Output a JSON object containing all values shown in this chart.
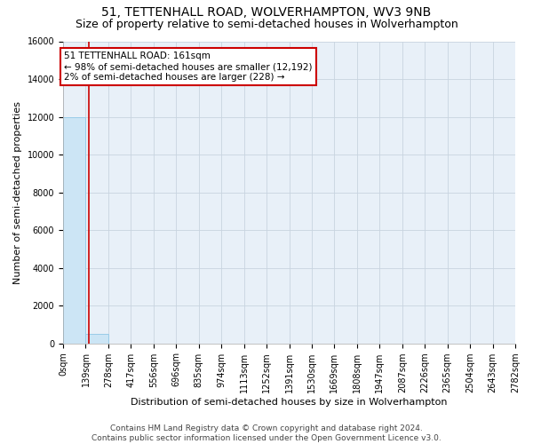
{
  "title_line1": "51, TETTENHALL ROAD, WOLVERHAMPTON, WV3 9NB",
  "title_line2": "Size of property relative to semi-detached houses in Wolverhampton",
  "xlabel": "Distribution of semi-detached houses by size in Wolverhampton",
  "ylabel_full": "Number of semi-detached properties",
  "footer_line1": "Contains HM Land Registry data © Crown copyright and database right 2024.",
  "footer_line2": "Contains public sector information licensed under the Open Government Licence v3.0.",
  "bin_edges": [
    0,
    139,
    278,
    417,
    556,
    696,
    835,
    974,
    1113,
    1252,
    1391,
    1530,
    1669,
    1808,
    1947,
    2087,
    2226,
    2365,
    2504,
    2643,
    2782
  ],
  "bin_labels": [
    "0sqm",
    "139sqm",
    "278sqm",
    "417sqm",
    "556sqm",
    "696sqm",
    "835sqm",
    "974sqm",
    "1113sqm",
    "1252sqm",
    "1391sqm",
    "1530sqm",
    "1669sqm",
    "1808sqm",
    "1947sqm",
    "2087sqm",
    "2226sqm",
    "2365sqm",
    "2504sqm",
    "2643sqm",
    "2782sqm"
  ],
  "bar_heights": [
    12000,
    500,
    0,
    0,
    0,
    0,
    0,
    0,
    0,
    0,
    0,
    0,
    0,
    0,
    0,
    0,
    0,
    0,
    0,
    0
  ],
  "bar_color": "#cce5f5",
  "bar_edgecolor": "#99cce8",
  "ylim": [
    0,
    16000
  ],
  "yticks": [
    0,
    2000,
    4000,
    6000,
    8000,
    10000,
    12000,
    14000,
    16000
  ],
  "property_size": 161,
  "property_line_color": "#cc0000",
  "annotation_title": "51 TETTENHALL ROAD: 161sqm",
  "annotation_line1": "← 98% of semi-detached houses are smaller (12,192)",
  "annotation_line2": "2% of semi-detached houses are larger (228) →",
  "annotation_box_facecolor": "#ffffff",
  "annotation_box_edgecolor": "#cc0000",
  "plot_bg_color": "#e8f0f8",
  "fig_bg_color": "#ffffff",
  "grid_color": "#c8d4e0",
  "title_fontsize": 10,
  "subtitle_fontsize": 9,
  "axis_label_fontsize": 8,
  "tick_fontsize": 7,
  "footer_fontsize": 6.5
}
